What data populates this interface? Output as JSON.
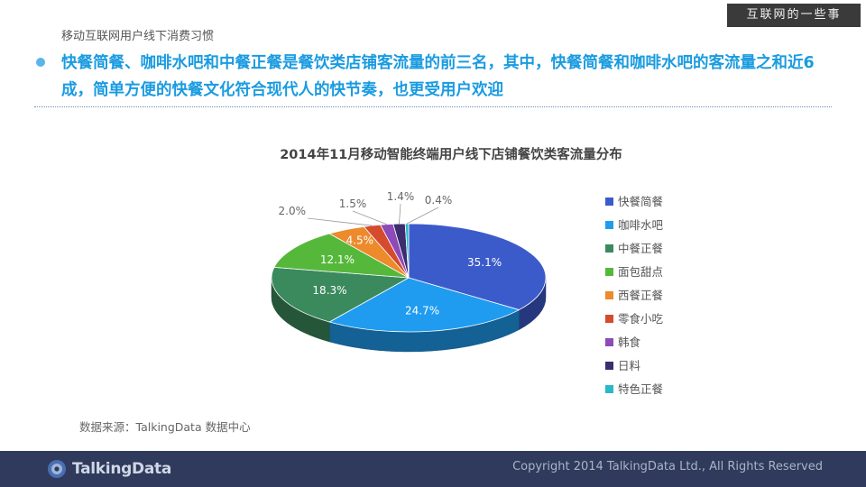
{
  "header": {
    "section_title": "移动互联网用户线下消费习惯",
    "brand_tag": "互联网的一些事",
    "headline": "快餐简餐、咖啡水吧和中餐正餐是餐饮类店铺客流量的前三名，其中，快餐简餐和咖啡水吧的客流量之和近6成，简单方便的快餐文化符合现代人的快节奏，也更受用户欢迎"
  },
  "source": "数据来源：TalkingData 数据中心",
  "footer": {
    "logo_text": "TalkingData",
    "copyright": "Copyright 2014 TalkingData Ltd., All Rights Reserved"
  },
  "chart_data": {
    "type": "pie",
    "title": "2014年11月移动智能终端用户线下店铺餐饮类客流量分布",
    "legend_position": "right",
    "slices": [
      {
        "label": "快餐简餐",
        "value": 35.1,
        "display": "35.1%",
        "color": "#3c5bcb"
      },
      {
        "label": "咖啡水吧",
        "value": 24.7,
        "display": "24.7%",
        "color": "#1f9cf0"
      },
      {
        "label": "中餐正餐",
        "value": 18.3,
        "display": "18.3%",
        "color": "#3b8a5e"
      },
      {
        "label": "面包甜点",
        "value": 12.1,
        "display": "12.1%",
        "color": "#56b83b"
      },
      {
        "label": "西餐正餐",
        "value": 4.5,
        "display": "4.5%",
        "color": "#ec8a2c"
      },
      {
        "label": "零食小吃",
        "value": 2.0,
        "display": "2.0%",
        "color": "#d64a2e"
      },
      {
        "label": "韩食",
        "value": 1.5,
        "display": "1.5%",
        "color": "#8c4bb8"
      },
      {
        "label": "日料",
        "value": 1.4,
        "display": "1.4%",
        "color": "#3b2d6e"
      },
      {
        "label": "特色正餐",
        "value": 0.4,
        "display": "0.4%",
        "color": "#2bb8c8"
      }
    ]
  }
}
